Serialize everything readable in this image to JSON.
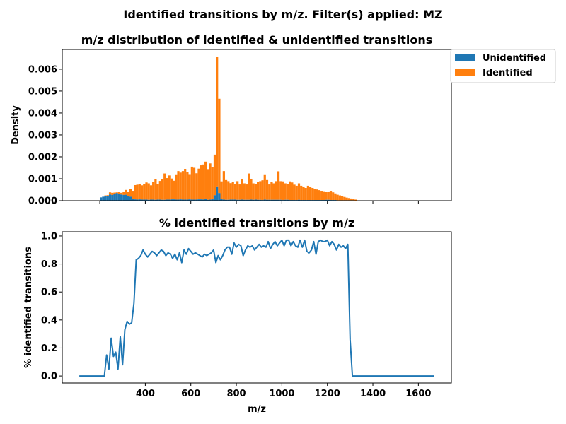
{
  "suptitle": "Identified transitions by m/z. Filter(s) applied: MZ",
  "colors": {
    "unidentified": "#1f77b4",
    "identified": "#ff7f0e",
    "line": "#1f77b4"
  },
  "chart_data": [
    {
      "type": "histogram",
      "title": "m/z distribution of identified & unidentified transitions",
      "xlabel": "",
      "ylabel": "Density",
      "xlim": [
        35,
        1745
      ],
      "ylim": [
        0,
        0.0069
      ],
      "yticks": [
        0.0,
        0.001,
        0.002,
        0.003,
        0.004,
        0.005,
        0.006
      ],
      "ytick_labels": [
        "0.000",
        "0.001",
        "0.002",
        "0.003",
        "0.004",
        "0.005",
        "0.006"
      ],
      "xticks": [
        200,
        400,
        600,
        800,
        1000,
        1200,
        1400,
        1600
      ],
      "xtick_labels_visible": false,
      "legend": {
        "placement": "upper-right-outside",
        "entries": [
          "Unidentified",
          "Identified"
        ]
      },
      "bin_width": 10,
      "x_start": 200,
      "series": [
        {
          "name": "Unidentified",
          "values": [
            0.00015,
            0.00018,
            0.00022,
            0.0002,
            0.00028,
            0.00026,
            0.00032,
            0.00035,
            0.0003,
            0.00028,
            0.00026,
            0.00027,
            0.00022,
            0.00018,
            8e-05,
            6e-05,
            5e-05,
            6e-05,
            5e-05,
            5e-05,
            5e-05,
            4e-05,
            5e-05,
            5e-05,
            4e-05,
            5e-05,
            5e-05,
            4e-05,
            4e-05,
            5e-05,
            5e-05,
            6e-05,
            6e-05,
            5e-05,
            5e-05,
            6e-05,
            5e-05,
            5e-05,
            5e-05,
            6e-05,
            5e-05,
            5e-05,
            5e-05,
            6e-05,
            6e-05,
            5e-05,
            8e-05,
            4e-05,
            5e-05,
            7e-05,
            0.00025,
            0.00065,
            0.00035,
            8e-05,
            5e-05,
            4e-05,
            4e-05,
            5e-05,
            5e-05,
            5e-05,
            4e-05,
            4e-05,
            5e-05,
            4e-05,
            4e-05,
            4e-05,
            5e-05,
            4e-05,
            5e-05,
            4e-05,
            4e-05,
            3e-05,
            5e-05,
            4e-05,
            4e-05,
            4e-05,
            4e-05,
            4e-05,
            4e-05,
            4e-05,
            3e-05,
            4e-05,
            4e-05,
            3e-05,
            3e-05,
            3e-05,
            3e-05,
            4e-05,
            3e-05,
            3e-05,
            3e-05,
            3e-05,
            3e-05,
            3e-05,
            3e-05,
            3e-05,
            3e-05,
            3e-05,
            3e-05,
            4e-05,
            4e-05,
            3e-05,
            3e-05,
            3e-05,
            2e-05,
            2e-05,
            2e-05,
            2e-05,
            2e-05,
            2e-05,
            2e-05,
            2e-05,
            1e-05
          ]
        },
        {
          "name": "Identified",
          "values": [
            0.0,
            0.0,
            2e-05,
            5e-05,
            0.0001,
            0.0001,
            5e-05,
            3e-05,
            0.0001,
            8e-05,
            0.00015,
            0.00022,
            0.00018,
            0.00035,
            0.00037,
            0.00065,
            0.00068,
            0.0007,
            0.00065,
            0.00072,
            0.00078,
            0.00075,
            0.00065,
            0.0008,
            0.00095,
            0.0007,
            0.00085,
            0.00095,
            0.0012,
            0.00098,
            0.0011,
            0.00095,
            0.00085,
            0.00115,
            0.0013,
            0.00122,
            0.0013,
            0.0014,
            0.00125,
            0.00115,
            0.0015,
            0.00145,
            0.0012,
            0.0014,
            0.00155,
            0.0016,
            0.0017,
            0.0014,
            0.00165,
            0.00145,
            0.00185,
            0.0059,
            0.0043,
            0.0008,
            0.0013,
            0.0009,
            0.00085,
            0.00075,
            0.0008,
            0.0007,
            0.00085,
            0.0007,
            0.00095,
            0.00075,
            0.0007,
            0.0012,
            0.00095,
            0.00075,
            0.0007,
            0.0008,
            0.00085,
            0.0009,
            0.00115,
            0.0009,
            0.0007,
            0.0008,
            0.00075,
            0.00085,
            0.0013,
            0.00085,
            0.00085,
            0.00075,
            0.00072,
            0.00085,
            0.0008,
            0.0007,
            0.00065,
            0.00075,
            0.00065,
            0.0006,
            0.00055,
            0.00065,
            0.0006,
            0.00055,
            0.0005,
            0.00048,
            0.00045,
            0.00042,
            0.0004,
            0.00035,
            0.00038,
            0.00042,
            0.00035,
            0.0003,
            0.00025,
            0.00022,
            0.0002,
            0.00015,
            0.00012,
            0.0001,
            8e-05,
            6e-05,
            4e-05
          ]
        }
      ]
    },
    {
      "type": "line",
      "title": "% identified transitions by m/z",
      "xlabel": "m/z",
      "ylabel": "% identified transitions",
      "xlim": [
        35,
        1745
      ],
      "ylim": [
        -0.05,
        1.03
      ],
      "yticks": [
        0.0,
        0.2,
        0.4,
        0.6,
        0.8,
        1.0
      ],
      "ytick_labels": [
        "0.0",
        "0.2",
        "0.4",
        "0.6",
        "0.8",
        "1.0"
      ],
      "xticks": [
        400,
        600,
        800,
        1000,
        1200,
        1400,
        1600
      ],
      "xtick_labels": [
        "400",
        "600",
        "800",
        "1000",
        "1200",
        "1400",
        "1600"
      ],
      "series": [
        {
          "x": [
            110,
            210,
            220,
            230,
            240,
            250,
            260,
            270,
            280,
            290,
            300,
            310,
            320,
            330,
            340,
            350,
            360,
            370,
            380,
            390,
            400,
            410,
            420,
            430,
            440,
            450,
            460,
            470,
            480,
            490,
            500,
            510,
            520,
            530,
            540,
            550,
            560,
            570,
            580,
            590,
            600,
            610,
            620,
            630,
            640,
            650,
            660,
            670,
            680,
            690,
            700,
            710,
            720,
            730,
            740,
            750,
            760,
            770,
            780,
            790,
            800,
            810,
            820,
            830,
            840,
            850,
            860,
            870,
            880,
            890,
            900,
            910,
            920,
            930,
            940,
            950,
            960,
            970,
            980,
            990,
            1000,
            1010,
            1020,
            1030,
            1040,
            1050,
            1060,
            1070,
            1080,
            1090,
            1100,
            1110,
            1120,
            1130,
            1140,
            1150,
            1160,
            1170,
            1180,
            1190,
            1200,
            1210,
            1220,
            1230,
            1240,
            1250,
            1260,
            1270,
            1280,
            1290,
            1300,
            1310,
            1320,
            1330,
            1340,
            1670
          ],
          "y": [
            0.0,
            0.0,
            0.0,
            0.15,
            0.05,
            0.27,
            0.14,
            0.17,
            0.05,
            0.28,
            0.08,
            0.33,
            0.39,
            0.37,
            0.38,
            0.52,
            0.83,
            0.84,
            0.86,
            0.9,
            0.87,
            0.85,
            0.87,
            0.89,
            0.88,
            0.86,
            0.88,
            0.9,
            0.89,
            0.86,
            0.88,
            0.87,
            0.84,
            0.87,
            0.83,
            0.88,
            0.81,
            0.9,
            0.87,
            0.91,
            0.89,
            0.87,
            0.88,
            0.87,
            0.86,
            0.85,
            0.87,
            0.86,
            0.87,
            0.88,
            0.9,
            0.81,
            0.86,
            0.83,
            0.86,
            0.9,
            0.92,
            0.92,
            0.87,
            0.95,
            0.92,
            0.94,
            0.93,
            0.86,
            0.9,
            0.93,
            0.92,
            0.93,
            0.9,
            0.92,
            0.94,
            0.92,
            0.93,
            0.92,
            0.96,
            0.91,
            0.94,
            0.96,
            0.93,
            0.95,
            0.97,
            0.93,
            0.97,
            0.97,
            0.93,
            0.96,
            0.93,
            0.92,
            0.97,
            0.92,
            0.97,
            0.89,
            0.88,
            0.9,
            0.96,
            0.87,
            0.96,
            0.97,
            0.96,
            0.96,
            0.97,
            0.93,
            0.96,
            0.94,
            0.9,
            0.94,
            0.92,
            0.93,
            0.91,
            0.94,
            0.26,
            0.0,
            0.0,
            0.0,
            0.0,
            0.0
          ]
        }
      ]
    }
  ]
}
